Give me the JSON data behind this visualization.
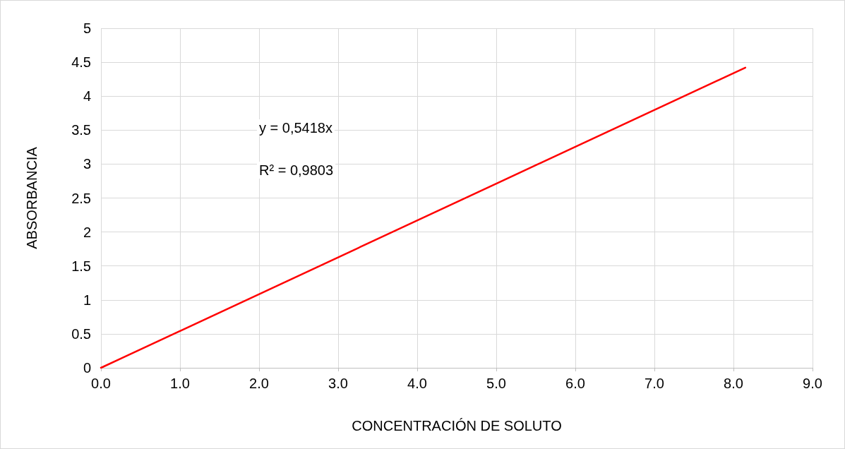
{
  "chart_data": {
    "type": "line",
    "xlabel": "CONCENTRACIÓN DE SOLUTO",
    "ylabel": "ABSORBANCIA",
    "annotations": [
      "y = 0,5418x",
      "R² = 0,9803"
    ],
    "series": [
      {
        "color": "#ff0000",
        "x": [
          0,
          8.15
        ],
        "values": [
          0,
          4.42
        ]
      }
    ],
    "xlim": [
      0,
      9
    ],
    "xticks": [
      {
        "value": 0,
        "label": "0.0"
      },
      {
        "value": 1,
        "label": "1.0"
      },
      {
        "value": 2,
        "label": "2.0"
      },
      {
        "value": 3,
        "label": "3.0"
      },
      {
        "value": 4,
        "label": "4.0"
      },
      {
        "value": 5,
        "label": "5.0"
      },
      {
        "value": 6,
        "label": "6.0"
      },
      {
        "value": 7,
        "label": "7.0"
      },
      {
        "value": 8,
        "label": "8.0"
      },
      {
        "value": 9,
        "label": "9.0"
      }
    ],
    "ylim": [
      0,
      5
    ],
    "yticks": [
      0,
      0.5,
      1,
      1.5,
      2,
      2.5,
      3,
      3.5,
      4,
      4.5,
      5
    ],
    "grid": true,
    "marker": "none",
    "line_style": "solid"
  }
}
